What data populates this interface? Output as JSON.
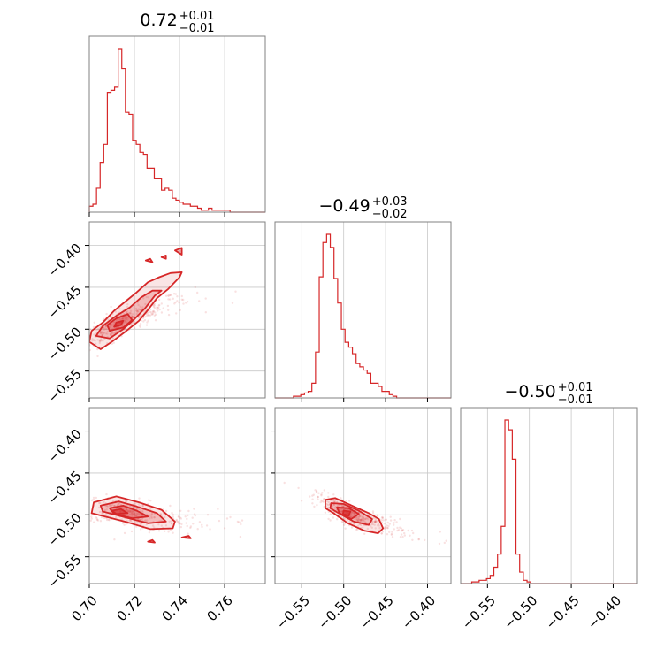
{
  "chart_data": {
    "type": "corner",
    "color": "#d62728",
    "grid": true,
    "params": [
      {
        "range": [
          0.7,
          0.778
        ],
        "ticks": [
          0.7,
          0.72,
          0.74,
          0.76
        ],
        "tick_labels": [
          "0.70",
          "0.72",
          "0.74",
          "0.76"
        ]
      },
      {
        "range": [
          -0.582,
          -0.372
        ],
        "ticks": [
          -0.55,
          -0.5,
          -0.45,
          -0.4
        ],
        "tick_labels": [
          "−0.55",
          "−0.50",
          "−0.45",
          "−0.40"
        ]
      },
      {
        "range": [
          -0.582,
          -0.372
        ],
        "ticks": [
          -0.55,
          -0.5,
          -0.45,
          -0.4
        ],
        "tick_labels": [
          "−0.55",
          "−0.50",
          "−0.45",
          "−0.40"
        ]
      }
    ],
    "titles": [
      {
        "value": "0.72",
        "plus": "+0.01",
        "minus": "−0.01"
      },
      {
        "value": "−0.49",
        "plus": "+0.03",
        "minus": "−0.02"
      },
      {
        "value": "−0.50",
        "plus": "+0.01",
        "minus": "−0.01"
      }
    ],
    "histograms": [
      {
        "param": 0,
        "bin_width": 0.0016,
        "counts": [
          3,
          4,
          12,
          25,
          34,
          60,
          61,
          63,
          82,
          72,
          50,
          49,
          36,
          34,
          30,
          29,
          22,
          22,
          17,
          17,
          11,
          12,
          11,
          7,
          6,
          5,
          4,
          4,
          3,
          3,
          2,
          1,
          1,
          2,
          1,
          1,
          1,
          1,
          1,
          0,
          0,
          0,
          0,
          0,
          0,
          0,
          0,
          0,
          0
        ]
      },
      {
        "param": 1,
        "bin_width": 0.0044,
        "counts": [
          0,
          0,
          0,
          0,
          0,
          1,
          1,
          2,
          3,
          4,
          9,
          28,
          74,
          95,
          100,
          92,
          73,
          58,
          42,
          34,
          31,
          27,
          21,
          19,
          17,
          15,
          9,
          9,
          7,
          4,
          4,
          2,
          1,
          0,
          0,
          0,
          0,
          0,
          0,
          0,
          0,
          0,
          0,
          0,
          0,
          0,
          0,
          0
        ]
      },
      {
        "param": 2,
        "bin_width": 0.0044,
        "counts": [
          0,
          0,
          0,
          1,
          1,
          2,
          2,
          3,
          5,
          10,
          18,
          35,
          100,
          94,
          76,
          18,
          7,
          2,
          1,
          0,
          0,
          0,
          0,
          0,
          0,
          0,
          0,
          0,
          0,
          0,
          0,
          0,
          0,
          0,
          0,
          0,
          0,
          0,
          0,
          0,
          0,
          0,
          0,
          0,
          0,
          0,
          0,
          0
        ]
      }
    ],
    "joint": [
      {
        "x": 0,
        "y": 1,
        "contour_levels": [
          [
            [
              0.7,
              -0.515
            ],
            [
              0.705,
              -0.524
            ],
            [
              0.71,
              -0.515
            ],
            [
              0.716,
              -0.503
            ],
            [
              0.722,
              -0.49
            ],
            [
              0.726,
              -0.477
            ],
            [
              0.73,
              -0.463
            ],
            [
              0.735,
              -0.452
            ],
            [
              0.74,
              -0.438
            ],
            [
              0.741,
              -0.432
            ],
            [
              0.736,
              -0.433
            ],
            [
              0.731,
              -0.438
            ],
            [
              0.726,
              -0.444
            ],
            [
              0.721,
              -0.456
            ],
            [
              0.716,
              -0.467
            ],
            [
              0.711,
              -0.478
            ],
            [
              0.706,
              -0.492
            ],
            [
              0.701,
              -0.502
            ]
          ],
          [
            [
              0.703,
              -0.508
            ],
            [
              0.709,
              -0.511
            ],
            [
              0.715,
              -0.5
            ],
            [
              0.72,
              -0.488
            ],
            [
              0.725,
              -0.474
            ],
            [
              0.729,
              -0.46
            ],
            [
              0.732,
              -0.454
            ],
            [
              0.728,
              -0.454
            ],
            [
              0.723,
              -0.462
            ],
            [
              0.718,
              -0.474
            ],
            [
              0.712,
              -0.484
            ],
            [
              0.706,
              -0.496
            ]
          ],
          [
            [
              0.709,
              -0.502
            ],
            [
              0.715,
              -0.498
            ],
            [
              0.719,
              -0.489
            ],
            [
              0.717,
              -0.482
            ],
            [
              0.712,
              -0.487
            ],
            [
              0.708,
              -0.495
            ]
          ],
          [
            [
              0.711,
              -0.497
            ],
            [
              0.714,
              -0.495
            ],
            [
              0.715,
              -0.49
            ],
            [
              0.712,
              -0.492
            ]
          ]
        ],
        "extra_islands": [
          [
            [
              0.738,
              -0.406
            ],
            [
              0.741,
              -0.411
            ],
            [
              0.741,
              -0.403
            ]
          ],
          [
            [
              0.725,
              -0.418
            ],
            [
              0.728,
              -0.42
            ],
            [
              0.727,
              -0.416
            ]
          ],
          [
            [
              0.732,
              -0.414
            ],
            [
              0.734,
              -0.416
            ],
            [
              0.734,
              -0.412
            ]
          ]
        ],
        "scatter_center": [
          0.714,
          -0.492
        ],
        "scatter_spread": [
          0.01,
          0.016
        ],
        "scatter_correlation": 0.88,
        "scatter_count": 420
      },
      {
        "x": 0,
        "y": 2,
        "contour_levels": [
          [
            [
              0.702,
              -0.485
            ],
            [
              0.712,
              -0.478
            ],
            [
              0.722,
              -0.485
            ],
            [
              0.732,
              -0.494
            ],
            [
              0.738,
              -0.508
            ],
            [
              0.737,
              -0.516
            ],
            [
              0.727,
              -0.517
            ],
            [
              0.717,
              -0.509
            ],
            [
              0.707,
              -0.502
            ],
            [
              0.701,
              -0.498
            ]
          ],
          [
            [
              0.705,
              -0.489
            ],
            [
              0.713,
              -0.484
            ],
            [
              0.721,
              -0.49
            ],
            [
              0.73,
              -0.498
            ],
            [
              0.734,
              -0.508
            ],
            [
              0.726,
              -0.51
            ],
            [
              0.716,
              -0.503
            ],
            [
              0.706,
              -0.496
            ]
          ],
          [
            [
              0.709,
              -0.492
            ],
            [
              0.715,
              -0.489
            ],
            [
              0.721,
              -0.495
            ],
            [
              0.726,
              -0.502
            ],
            [
              0.719,
              -0.504
            ],
            [
              0.711,
              -0.499
            ]
          ],
          [
            [
              0.71,
              -0.495
            ],
            [
              0.714,
              -0.493
            ],
            [
              0.717,
              -0.498
            ],
            [
              0.712,
              -0.499
            ]
          ]
        ],
        "extra_islands": [
          [
            [
              0.741,
              -0.527
            ],
            [
              0.745,
              -0.528
            ],
            [
              0.744,
              -0.525
            ]
          ],
          [
            [
              0.726,
              -0.532
            ],
            [
              0.729,
              -0.533
            ],
            [
              0.728,
              -0.53
            ]
          ]
        ],
        "scatter_center": [
          0.718,
          -0.499
        ],
        "scatter_spread": [
          0.012,
          0.01
        ],
        "scatter_correlation": -0.55,
        "scatter_count": 380
      },
      {
        "x": 1,
        "y": 2,
        "contour_levels": [
          [
            [
              -0.522,
              -0.482
            ],
            [
              -0.51,
              -0.48
            ],
            [
              -0.49,
              -0.489
            ],
            [
              -0.47,
              -0.498
            ],
            [
              -0.458,
              -0.505
            ],
            [
              -0.453,
              -0.516
            ],
            [
              -0.459,
              -0.522
            ],
            [
              -0.475,
              -0.519
            ],
            [
              -0.495,
              -0.51
            ],
            [
              -0.512,
              -0.498
            ],
            [
              -0.522,
              -0.492
            ]
          ],
          [
            [
              -0.515,
              -0.486
            ],
            [
              -0.5,
              -0.487
            ],
            [
              -0.482,
              -0.495
            ],
            [
              -0.466,
              -0.505
            ],
            [
              -0.47,
              -0.512
            ],
            [
              -0.488,
              -0.508
            ],
            [
              -0.506,
              -0.498
            ],
            [
              -0.516,
              -0.492
            ]
          ],
          [
            [
              -0.508,
              -0.491
            ],
            [
              -0.494,
              -0.492
            ],
            [
              -0.482,
              -0.499
            ],
            [
              -0.491,
              -0.505
            ],
            [
              -0.505,
              -0.498
            ]
          ],
          [
            [
              -0.5,
              -0.495
            ],
            [
              -0.492,
              -0.496
            ],
            [
              -0.494,
              -0.501
            ],
            [
              -0.501,
              -0.499
            ]
          ]
        ],
        "extra_islands": [],
        "scatter_center": [
          -0.488,
          -0.501
        ],
        "scatter_spread": [
          0.022,
          0.012
        ],
        "scatter_correlation": -0.85,
        "scatter_count": 420
      }
    ]
  }
}
